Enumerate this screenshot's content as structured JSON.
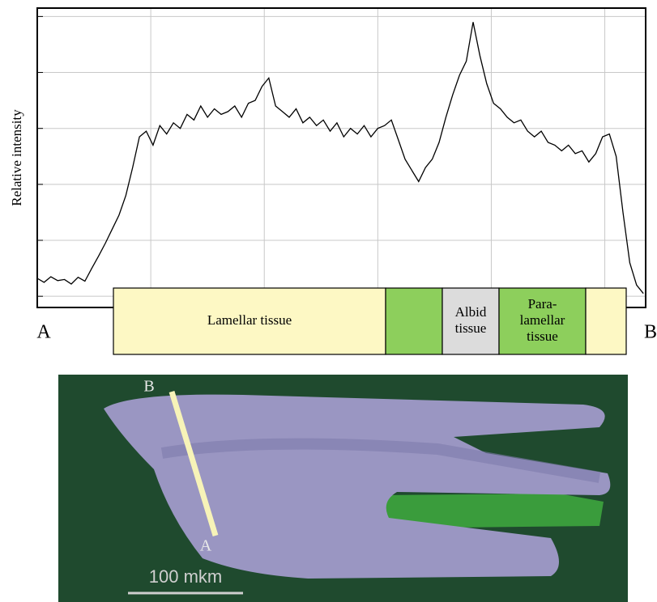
{
  "chart_data": {
    "type": "line",
    "ylabel": "Relative intensity",
    "color": "#000000",
    "grid": true,
    "xlim": [
      0,
      5.36
    ],
    "xticks": [
      1,
      2,
      3,
      4,
      5
    ],
    "ylim": [
      -0.2,
      5.15
    ],
    "yticks": [
      0,
      1,
      2,
      3,
      4,
      5
    ],
    "x": [
      0,
      0.06,
      0.12,
      0.18,
      0.24,
      0.3,
      0.36,
      0.42,
      0.48,
      0.54,
      0.6,
      0.66,
      0.72,
      0.78,
      0.84,
      0.9,
      0.96,
      1.02,
      1.08,
      1.14,
      1.2,
      1.26,
      1.32,
      1.38,
      1.44,
      1.5,
      1.56,
      1.62,
      1.68,
      1.74,
      1.8,
      1.86,
      1.92,
      1.98,
      2.04,
      2.1,
      2.16,
      2.22,
      2.28,
      2.34,
      2.4,
      2.46,
      2.52,
      2.58,
      2.64,
      2.7,
      2.76,
      2.82,
      2.88,
      2.94,
      3,
      3.06,
      3.12,
      3.18,
      3.24,
      3.3,
      3.36,
      3.42,
      3.48,
      3.54,
      3.6,
      3.66,
      3.72,
      3.78,
      3.84,
      3.9,
      3.96,
      4.02,
      4.08,
      4.14,
      4.2,
      4.26,
      4.32,
      4.38,
      4.44,
      4.5,
      4.56,
      4.62,
      4.68,
      4.74,
      4.8,
      4.86,
      4.92,
      4.98,
      5.04,
      5.1,
      5.16,
      5.22,
      5.28,
      5.34
    ],
    "values": [
      0.32,
      0.25,
      0.35,
      0.28,
      0.3,
      0.22,
      0.34,
      0.27,
      0.5,
      0.72,
      0.95,
      1.2,
      1.45,
      1.8,
      2.3,
      2.85,
      2.95,
      2.7,
      3.05,
      2.9,
      3.1,
      3.0,
      3.25,
      3.15,
      3.4,
      3.2,
      3.35,
      3.25,
      3.3,
      3.4,
      3.2,
      3.45,
      3.5,
      3.75,
      3.9,
      3.4,
      3.3,
      3.2,
      3.35,
      3.1,
      3.2,
      3.05,
      3.15,
      2.95,
      3.1,
      2.85,
      3.0,
      2.9,
      3.05,
      2.85,
      3.0,
      3.05,
      3.15,
      2.8,
      2.45,
      2.25,
      2.05,
      2.3,
      2.45,
      2.75,
      3.2,
      3.6,
      3.95,
      4.2,
      4.9,
      4.3,
      3.8,
      3.45,
      3.35,
      3.2,
      3.1,
      3.15,
      2.95,
      2.85,
      2.95,
      2.75,
      2.7,
      2.6,
      2.7,
      2.55,
      2.6,
      2.4,
      2.55,
      2.85,
      2.9,
      2.5,
      1.5,
      0.6,
      0.2,
      0.05
    ]
  },
  "endpoints": [
    "A",
    "B"
  ],
  "zones": [
    {
      "lines": [
        "Lamellar tissue"
      ],
      "color": "#fdf8c4"
    },
    {
      "color": "#8dcf5c"
    },
    {
      "lines": [
        "Albid",
        "tissue"
      ],
      "color": "#dcdcdc"
    },
    {
      "lines": [
        "Para-",
        "lamellar",
        "tissue"
      ],
      "color": "#8dcf5c"
    },
    {
      "color": "#fdf8c4"
    }
  ],
  "micrograph": {
    "labels": [
      "B",
      "A"
    ],
    "scale_bar": "100 mkm"
  }
}
